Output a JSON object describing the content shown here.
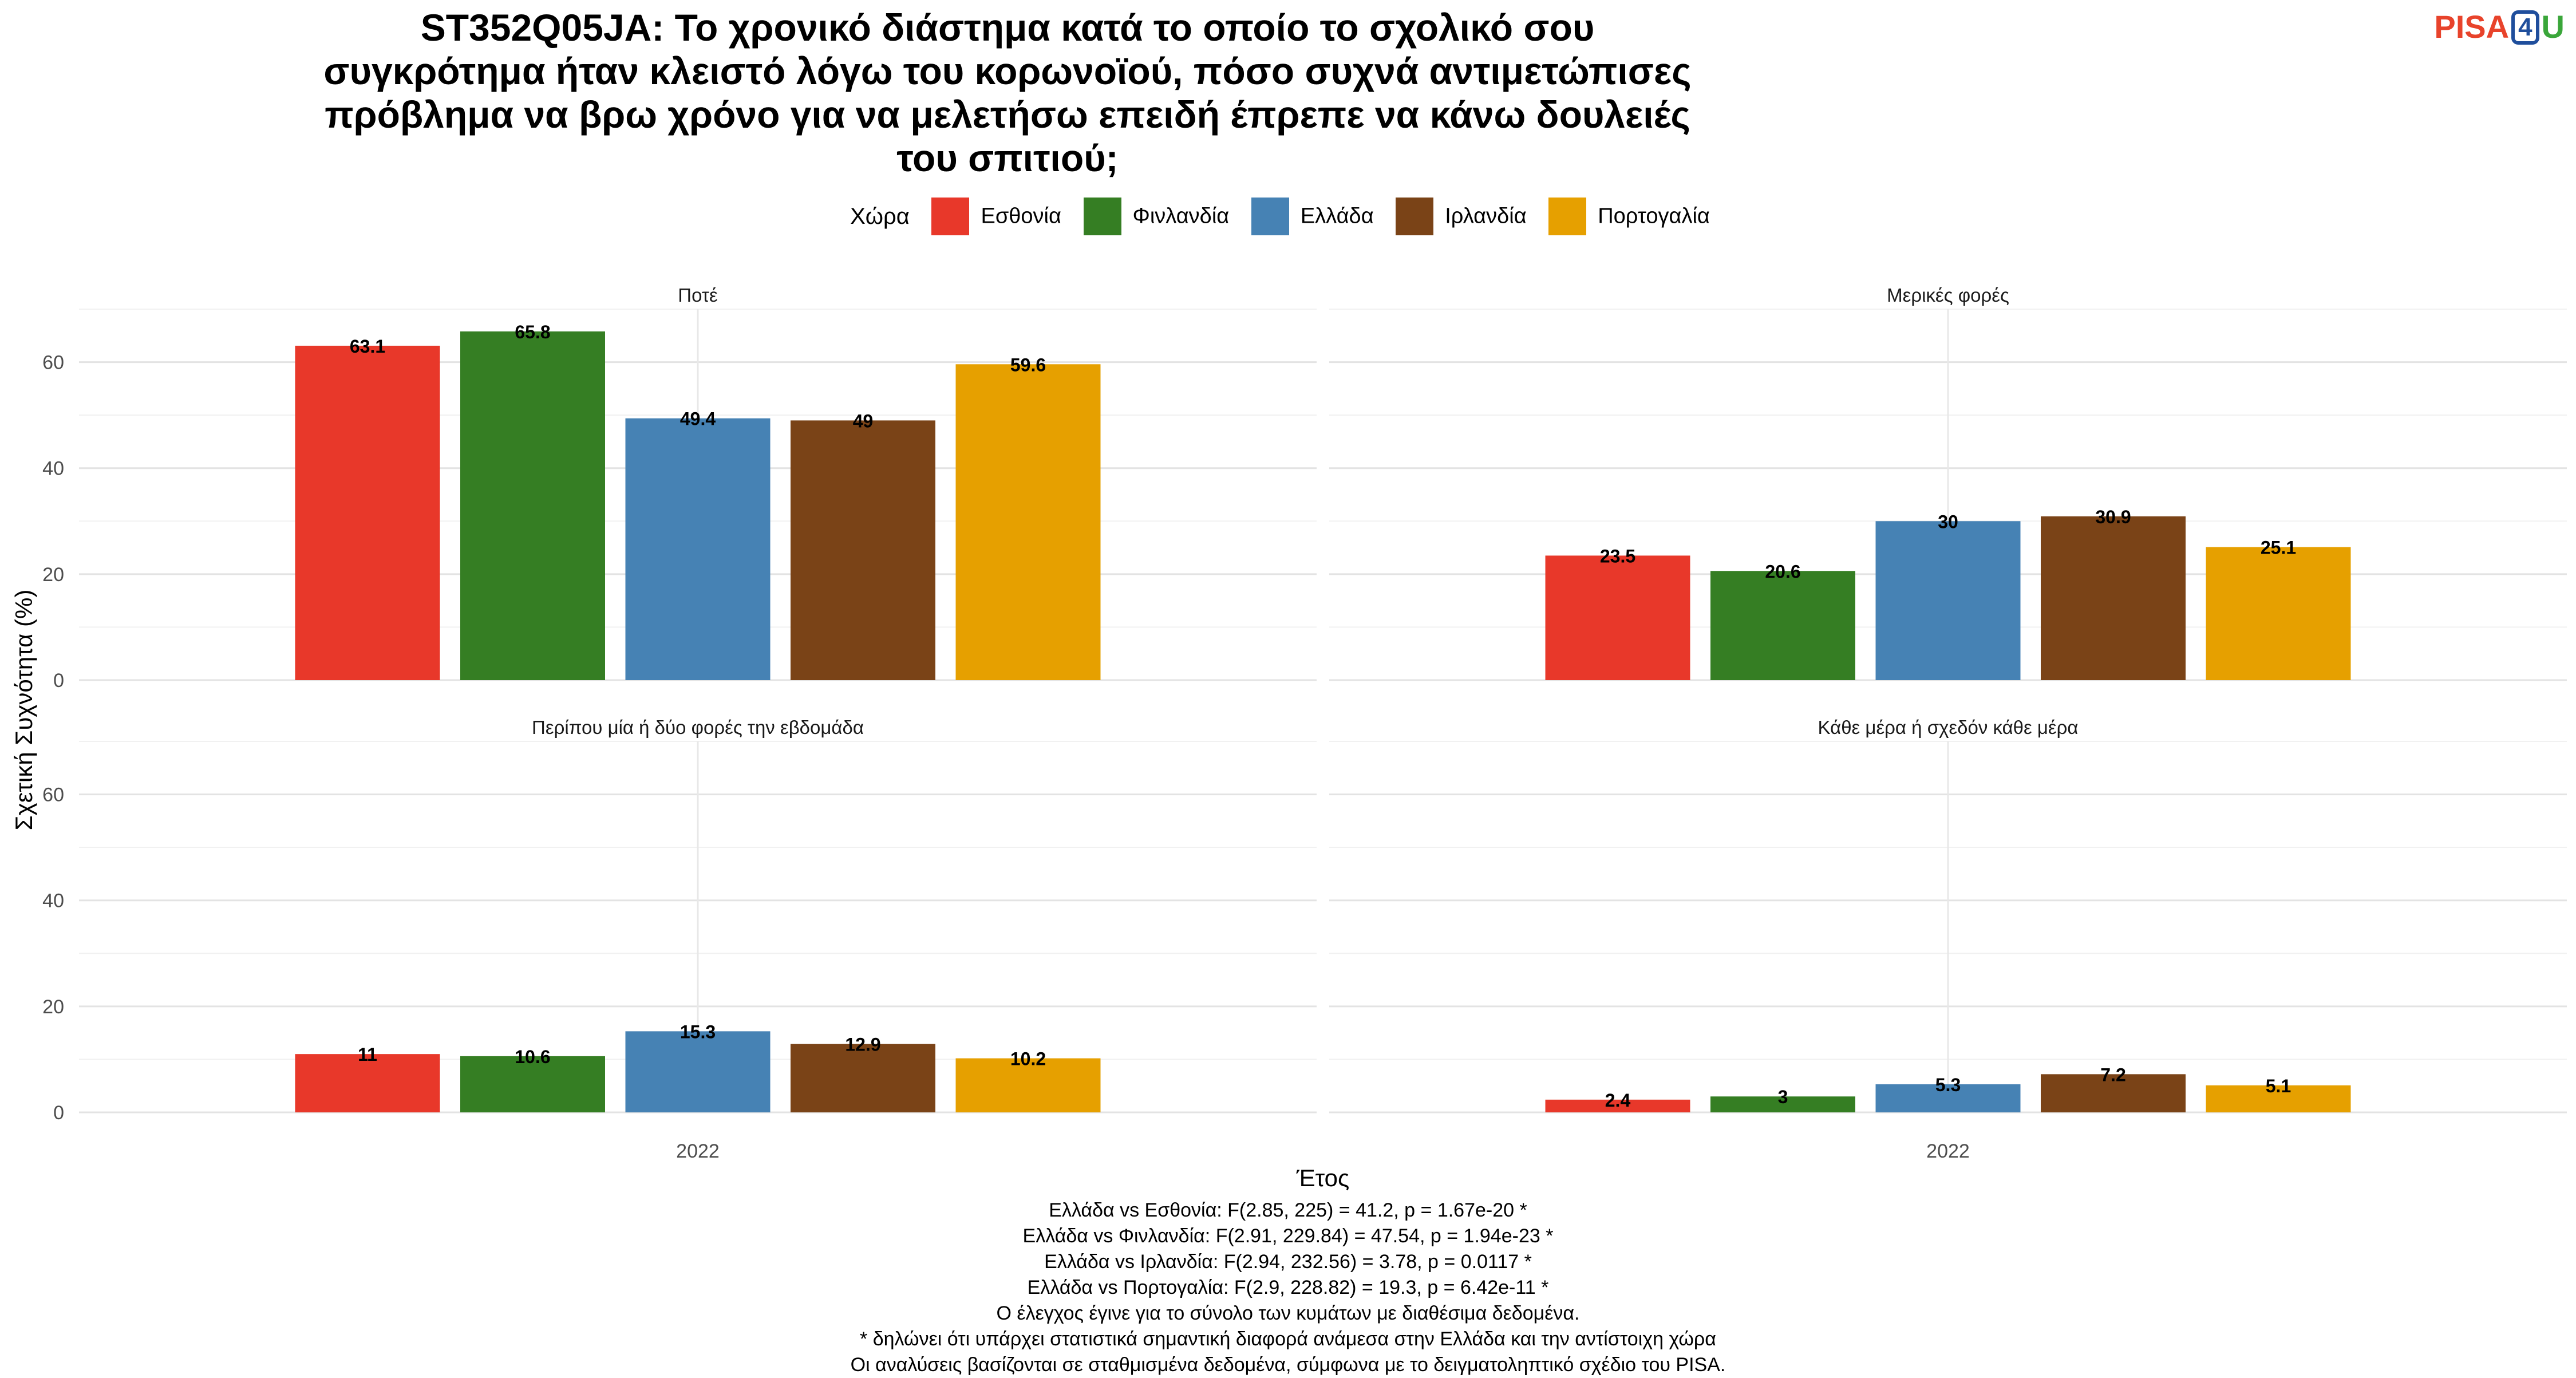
{
  "title_lines": [
    "ST352Q05JA: Το χρονικό διάστημα κατά το οποίο το σχολικό σου",
    "συγκρότημα ήταν κλειστό λόγω του κορωνοϊού, πόσο συχνά αντιμετώπισες",
    "πρόβλημα να βρω χρόνο για να μελετήσω επειδή έπρεπε να κάνω δουλειές",
    "του σπιτιού;"
  ],
  "logo": {
    "part1": "PISA",
    "part2": "4",
    "part3": "U"
  },
  "legend": {
    "title": "Χώρα",
    "items": [
      {
        "label": "Εσθονία",
        "color": "#E8382A"
      },
      {
        "label": "Φινλανδία",
        "color": "#357E23"
      },
      {
        "label": "Ελλάδα",
        "color": "#4682B4"
      },
      {
        "label": "Ιρλανδία",
        "color": "#7A4317"
      },
      {
        "label": "Πορτογαλία",
        "color": "#E6A000"
      }
    ]
  },
  "chart_data": {
    "type": "bar",
    "title": "ST352Q05JA: Το χρονικό διάστημα κατά το οποίο το σχολικό σου συγκρότημα ήταν κλειστό λόγω του κορωνοϊού, πόσο συχνά αντιμετώπισες πρόβλημα να βρω χρόνο για να μελετήσω επειδή έπρεπε να κάνω δουλειές του σπιτιού;",
    "xlabel": "Έτος",
    "ylabel": "Σχετική Συχνότητα (%)",
    "ylim": [
      0,
      70
    ],
    "yticks": [
      0,
      20,
      40,
      60
    ],
    "grid": true,
    "legend_position": "top",
    "categories": [
      "2022"
    ],
    "facets": [
      {
        "label": "Ποτέ",
        "series": [
          {
            "name": "Εσθονία",
            "values": [
              63.1
            ]
          },
          {
            "name": "Φινλανδία",
            "values": [
              65.8
            ]
          },
          {
            "name": "Ελλάδα",
            "values": [
              49.4
            ]
          },
          {
            "name": "Ιρλανδία",
            "values": [
              49
            ]
          },
          {
            "name": "Πορτογαλία",
            "values": [
              59.6
            ]
          }
        ]
      },
      {
        "label": "Μερικές φορές",
        "series": [
          {
            "name": "Εσθονία",
            "values": [
              23.5
            ]
          },
          {
            "name": "Φινλανδία",
            "values": [
              20.6
            ]
          },
          {
            "name": "Ελλάδα",
            "values": [
              30
            ]
          },
          {
            "name": "Ιρλανδία",
            "values": [
              30.9
            ]
          },
          {
            "name": "Πορτογαλία",
            "values": [
              25.1
            ]
          }
        ]
      },
      {
        "label": "Περίπου μία ή δύο φορές την εβδομάδα",
        "series": [
          {
            "name": "Εσθονία",
            "values": [
              11
            ]
          },
          {
            "name": "Φινλανδία",
            "values": [
              10.6
            ]
          },
          {
            "name": "Ελλάδα",
            "values": [
              15.3
            ]
          },
          {
            "name": "Ιρλανδία",
            "values": [
              12.9
            ]
          },
          {
            "name": "Πορτογαλία",
            "values": [
              10.2
            ]
          }
        ]
      },
      {
        "label": "Κάθε μέρα ή σχεδόν κάθε μέρα",
        "series": [
          {
            "name": "Εσθονία",
            "values": [
              2.4
            ]
          },
          {
            "name": "Φινλανδία",
            "values": [
              3
            ]
          },
          {
            "name": "Ελλάδα",
            "values": [
              5.3
            ]
          },
          {
            "name": "Ιρλανδία",
            "values": [
              7.2
            ]
          },
          {
            "name": "Πορτογαλία",
            "values": [
              5.1
            ]
          }
        ]
      }
    ]
  },
  "footer_lines": [
    "Ελλάδα vs Εσθονία: F(2.85, 225) = 41.2, p = 1.67e-20 *",
    "Ελλάδα vs Φινλανδία: F(2.91, 229.84) = 47.54, p = 1.94e-23 *",
    "Ελλάδα vs Ιρλανδία: F(2.94, 232.56) = 3.78, p = 0.0117 *",
    "Ελλάδα vs Πορτογαλία: F(2.9, 228.82) = 19.3, p = 6.42e-11 *",
    "Ο έλεγχος έγινε για το σύνολο των κυμάτων με διαθέσιμα δεδομένα.",
    "* δηλώνει ότι υπάρχει στατιστικά σημαντική διαφορά ανάμεσα στην Ελλάδα και την αντίστοιχη χώρα",
    "Οι αναλύσεις βασίζονται σε σταθμισμένα δεδομένα, σύμφωνα με το δειγματοληπτικό σχέδιο του PISA."
  ]
}
